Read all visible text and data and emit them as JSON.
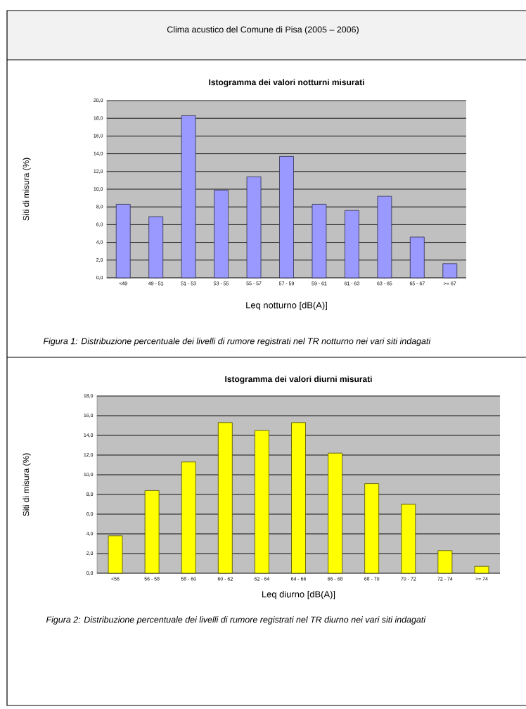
{
  "chart_data": [
    {
      "type": "bar",
      "title": "Istogramma dei valori notturni misurati",
      "xlabel": "Leq notturno [dB(A)]",
      "ylabel": "Siti di misura (%)",
      "annotations": [
        "Clima acustico del Comune di Pisa (2005 – 2006)",
        "*Figura 1: Distribuzione percentuale dei livelli di rumore registrati nel TR notturno nei vari siti indagati*"
      ],
      "categories": [
        "<49",
        "49 - 51",
        "51 - 53",
        "53 - 55",
        "55 - 57",
        "57 - 59",
        "59 - 61",
        "61 - 63",
        "63 - 65",
        "65 - 67",
        ">= 67"
      ],
      "values": [
        8.3,
        6.9,
        18.3,
        9.9,
        11.4,
        13.7,
        8.3,
        7.6,
        9.2,
        4.6,
        1.6
      ],
      "color": "#9999ff",
      "ylim": [
        0,
        20
      ],
      "yticks": [
        {
          "value": 0,
          "label": "0,0"
        },
        {
          "value": 2,
          "label": "2,0"
        },
        {
          "value": 4,
          "label": "4,0"
        },
        {
          "value": 6,
          "label": "6,0"
        },
        {
          "value": 8,
          "label": "8,0"
        },
        {
          "value": 10,
          "label": "10,0"
        },
        {
          "value": 12,
          "label": "12,0"
        },
        {
          "value": 14,
          "label": "14,0"
        },
        {
          "value": 16,
          "label": "16,0"
        },
        {
          "value": 18,
          "label": "18,0"
        },
        {
          "value": 20,
          "label": "20,0"
        }
      ],
      "grid": "y"
    },
    {
      "type": "bar",
      "title": "Istogramma dei valori diurni misurati",
      "xlabel": "Leq diurno [dB(A)]",
      "ylabel": "Siti di misura (%)",
      "annotations": [
        "*Figura 2: Distribuzione percentuale dei livelli di rumore registrati nel TR diurno nei vari siti indagati*"
      ],
      "categories": [
        "<56",
        "56 - 58",
        "58 - 60",
        "60 - 62",
        "62 - 64",
        "64 - 66",
        "66 - 68",
        "68 - 70",
        "70 - 72",
        "72 - 74",
        ">= 74"
      ],
      "values": [
        3.8,
        8.4,
        11.3,
        15.3,
        14.5,
        15.3,
        12.2,
        9.1,
        7.0,
        2.3,
        0.7
      ],
      "color": "#ffff00",
      "ylim": [
        0,
        18
      ],
      "yticks": [
        {
          "value": 0,
          "label": "0,0"
        },
        {
          "value": 2,
          "label": "2,0"
        },
        {
          "value": 4,
          "label": "4,0"
        },
        {
          "value": 6,
          "label": "6,0"
        },
        {
          "value": 8,
          "label": "8,0"
        },
        {
          "value": 10,
          "label": "10,0"
        },
        {
          "value": 12,
          "label": "12,0"
        },
        {
          "value": 14,
          "label": "14,0"
        },
        {
          "value": 16,
          "label": "16,0"
        },
        {
          "value": 18,
          "label": "18,0"
        }
      ],
      "grid": "y"
    }
  ]
}
